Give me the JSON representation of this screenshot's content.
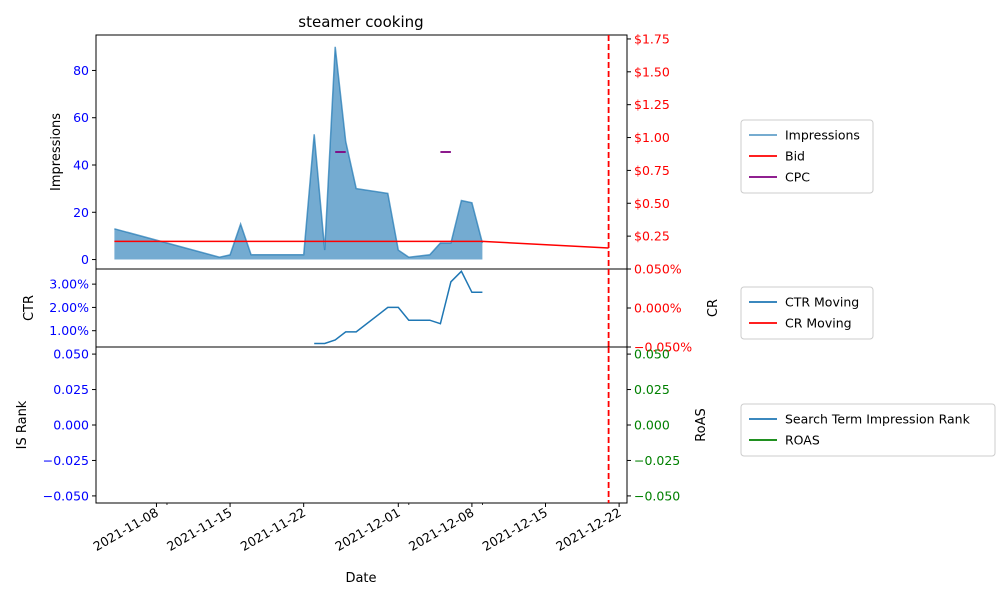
{
  "title": "steamer cooking",
  "xlabel": "Date",
  "x_ticks": [
    "2021-11-08",
    "2021-11-15",
    "2021-11-22",
    "2021-12-01",
    "2021-12-08",
    "2021-12-15",
    "2021-12-22"
  ],
  "colors": {
    "impressions": "#1f77b4",
    "bid": "#ff0000",
    "cpc": "#800080",
    "ctr": "#1f77b4",
    "cr": "#ff0000",
    "is_rank": "#1f77b4",
    "roas": "#008000",
    "left_tick": "#0000ff",
    "marker": "#ff0000"
  },
  "chart_data": [
    {
      "type": "area",
      "panel": "top",
      "title": "steamer cooking",
      "xlabel": "",
      "ylabel": "Impressions",
      "ylabel_right": "",
      "ylim": [
        -4,
        95
      ],
      "y_ticks": [
        0,
        20,
        40,
        60,
        80
      ],
      "ylim_right": [
        0,
        1.78
      ],
      "y_ticks_right": [
        "$0.25",
        "$0.50",
        "$0.75",
        "$1.00",
        "$1.25",
        "$1.50",
        "$1.75"
      ],
      "y_ticks_right_values": [
        0.25,
        0.5,
        0.75,
        1.0,
        1.25,
        1.5,
        1.75
      ],
      "legend": "right",
      "vertical_marker": "2021-12-21",
      "series": [
        {
          "name": "Impressions",
          "kind": "area",
          "axis": "left",
          "x": [
            "2021-11-04",
            "2021-11-14",
            "2021-11-15",
            "2021-11-16",
            "2021-11-17",
            "2021-11-22",
            "2021-11-23",
            "2021-11-24",
            "2021-11-25",
            "2021-11-26",
            "2021-11-27",
            "2021-11-30",
            "2021-12-01",
            "2021-12-02",
            "2021-12-04",
            "2021-12-05",
            "2021-12-06",
            "2021-12-07",
            "2021-12-08",
            "2021-12-09"
          ],
          "values": [
            13,
            1,
            2,
            15,
            2,
            2,
            53,
            4,
            90,
            50,
            30,
            28,
            4,
            1,
            2,
            7,
            7,
            25,
            24,
            7
          ]
        },
        {
          "name": "Bid",
          "kind": "line",
          "axis": "right",
          "x": [
            "2021-11-04",
            "2021-12-09",
            "2021-12-21"
          ],
          "values": [
            0.21,
            0.21,
            0.16
          ]
        },
        {
          "name": "CPC",
          "kind": "line",
          "axis": "right",
          "segments": [
            {
              "x": [
                "2021-11-25",
                "2021-11-26"
              ],
              "values": [
                0.89,
                0.89
              ]
            },
            {
              "x": [
                "2021-12-05",
                "2021-12-06"
              ],
              "values": [
                0.89,
                0.89
              ]
            }
          ]
        }
      ]
    },
    {
      "type": "line",
      "panel": "middle",
      "xlabel": "",
      "ylabel": "CTR",
      "ylabel_right": "CR",
      "ylim": [
        0.003,
        0.0365
      ],
      "y_ticks": [
        "1.00%",
        "2.00%",
        "3.00%"
      ],
      "y_ticks_values": [
        0.01,
        0.02,
        0.03
      ],
      "ylim_right": [
        -0.0005,
        0.0005
      ],
      "y_ticks_right": [
        "−0.050%",
        "0.000%",
        "0.050%"
      ],
      "y_ticks_right_values": [
        -0.0005,
        0.0,
        0.0005
      ],
      "legend": "right",
      "vertical_marker": "2021-12-21",
      "series": [
        {
          "name": "CTR Moving",
          "axis": "left",
          "x": [
            "2021-11-23",
            "2021-11-24",
            "2021-11-25",
            "2021-11-26",
            "2021-11-27",
            "2021-11-30",
            "2021-12-01",
            "2021-12-02",
            "2021-12-04",
            "2021-12-05",
            "2021-12-06",
            "2021-12-07",
            "2021-12-08",
            "2021-12-09"
          ],
          "values": [
            0.0045,
            0.0045,
            0.006,
            0.0095,
            0.0095,
            0.02,
            0.02,
            0.0145,
            0.0145,
            0.013,
            0.031,
            0.0355,
            0.0265,
            0.0265
          ]
        },
        {
          "name": "CR Moving",
          "axis": "right",
          "x": [],
          "values": []
        }
      ]
    },
    {
      "type": "line",
      "panel": "bottom",
      "xlabel": "Date",
      "ylabel": "IS Rank",
      "ylabel_right": "RoAS",
      "ylim": [
        -0.055,
        0.055
      ],
      "y_ticks": [
        "−0.050",
        "−0.025",
        "0.000",
        "0.025",
        "0.050"
      ],
      "y_ticks_values": [
        -0.05,
        -0.025,
        0.0,
        0.025,
        0.05
      ],
      "ylim_right": [
        -0.055,
        0.055
      ],
      "y_ticks_right": [
        "−0.050",
        "−0.025",
        "0.000",
        "0.025",
        "0.050"
      ],
      "y_ticks_right_values": [
        -0.05,
        -0.025,
        0.0,
        0.025,
        0.05
      ],
      "legend": "right",
      "vertical_marker": "2021-12-21",
      "series": [
        {
          "name": "Search Term Impression Rank",
          "axis": "left",
          "x": [],
          "values": []
        },
        {
          "name": "ROAS",
          "axis": "right",
          "x": [],
          "values": []
        }
      ]
    }
  ]
}
